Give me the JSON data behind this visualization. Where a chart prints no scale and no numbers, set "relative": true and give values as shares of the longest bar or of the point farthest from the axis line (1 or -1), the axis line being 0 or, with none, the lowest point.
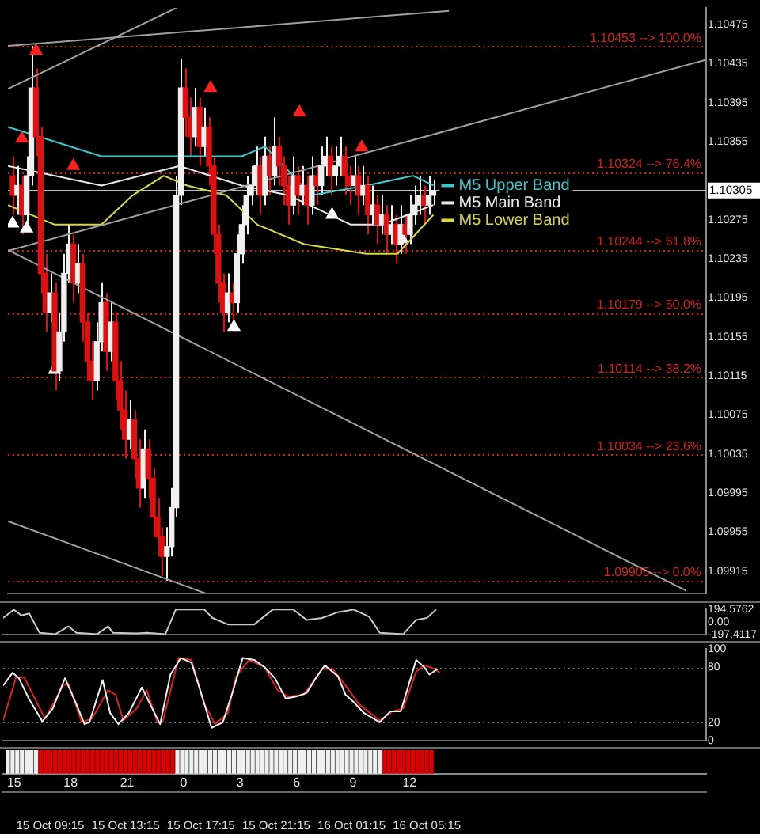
{
  "chart_data": [
    {
      "type": "candlestick",
      "xlim": [
        "--10-15T06:45",
        "--10-16T20:05"
      ],
      "ylim": [
        1.09892,
        1.10492
      ],
      "legend": "center",
      "yticks": [
        1.09915,
        1.09955,
        1.09995,
        1.10035,
        1.10075,
        1.10115,
        1.10155,
        1.10195,
        1.10235,
        1.10275,
        1.10355,
        1.10395,
        1.10435,
        1.10475
      ],
      "tick_labels": "y",
      "x": [
        "--10-15T07:00",
        "--10-15T07:15",
        "--10-15T07:30",
        "--10-15T07:45",
        "--10-15T08:00",
        "--10-15T08:15",
        "--10-15T08:30",
        "--10-15T08:45",
        "--10-15T09:00",
        "--10-15T09:15",
        "--10-15T09:30",
        "--10-15T09:45",
        "--10-15T10:00",
        "--10-15T10:15",
        "--10-15T10:30",
        "--10-15T10:45",
        "--10-15T11:00",
        "--10-15T11:15",
        "--10-15T11:30",
        "--10-15T11:45",
        "--10-15T12:00",
        "--10-15T12:15",
        "--10-15T12:30",
        "--10-15T12:45",
        "--10-15T13:00",
        "--10-15T13:15",
        "--10-15T13:30",
        "--10-15T13:45",
        "--10-15T14:00",
        "--10-15T14:15",
        "--10-15T14:30",
        "--10-15T14:45",
        "--10-15T15:00",
        "--10-15T15:15",
        "--10-15T15:30",
        "--10-15T15:45",
        "--10-15T16:00",
        "--10-15T16:15",
        "--10-15T16:30",
        "--10-15T16:45",
        "--10-15T17:00",
        "--10-15T17:15",
        "--10-15T17:30",
        "--10-15T17:45",
        "--10-15T18:00",
        "--10-15T18:15",
        "--10-15T18:30",
        "--10-15T18:45",
        "--10-15T19:00",
        "--10-15T19:15",
        "--10-15T19:30",
        "--10-15T19:45",
        "--10-15T20:00",
        "--10-15T20:15",
        "--10-15T20:30",
        "--10-15T20:45",
        "--10-15T21:00",
        "--10-15T21:15",
        "--10-15T21:30",
        "--10-15T21:45",
        "--10-15T22:00",
        "--10-15T22:15",
        "--10-15T22:30",
        "--10-15T22:45",
        "--10-15T23:00",
        "--10-15T23:15",
        "--10-15T23:30",
        "--10-15T23:45",
        "--10-16T00:00",
        "--10-16T00:15",
        "--10-16T00:30",
        "--10-16T00:45",
        "--10-16T01:00",
        "--10-16T01:15",
        "--10-16T01:30",
        "--10-16T01:45",
        "--10-16T02:00",
        "--10-16T02:15",
        "--10-16T02:30",
        "--10-16T02:45",
        "--10-16T03:00",
        "--10-16T03:15",
        "--10-16T03:30",
        "--10-16T03:45",
        "--10-16T04:00",
        "--10-16T04:15",
        "--10-16T04:30",
        "--10-16T04:45",
        "--10-16T05:00",
        "--10-16T05:15",
        "--10-16T05:30"
      ],
      "ohlc": [
        [
          1.1032,
          1.1034,
          1.1028,
          1.103
        ],
        [
          1.103,
          1.1033,
          1.1028,
          1.1031
        ],
        [
          1.1031,
          1.1032,
          1.1026,
          1.1028
        ],
        [
          1.1028,
          1.1034,
          1.1027,
          1.1032
        ],
        [
          1.1032,
          1.10453,
          1.1031,
          1.1041
        ],
        [
          1.1041,
          1.1043,
          1.1034,
          1.1036
        ],
        [
          1.1036,
          1.1037,
          1.102,
          1.1022
        ],
        [
          1.1022,
          1.1024,
          1.1016,
          1.1018
        ],
        [
          1.1018,
          1.1022,
          1.1017,
          1.102
        ],
        [
          1.102,
          1.1021,
          1.101,
          1.1012
        ],
        [
          1.1012,
          1.1018,
          1.1011,
          1.1016
        ],
        [
          1.1016,
          1.1024,
          1.1015,
          1.1022
        ],
        [
          1.1022,
          1.1027,
          1.1021,
          1.1025
        ],
        [
          1.1025,
          1.1026,
          1.1019,
          1.1021
        ],
        [
          1.1021,
          1.1025,
          1.102,
          1.1023
        ],
        [
          1.1023,
          1.1024,
          1.1015,
          1.1017
        ],
        [
          1.1017,
          1.1018,
          1.1011,
          1.1013
        ],
        [
          1.1013,
          1.1015,
          1.1009,
          1.1011
        ],
        [
          1.1011,
          1.1017,
          1.101,
          1.1015
        ],
        [
          1.1015,
          1.1021,
          1.1014,
          1.1019
        ],
        [
          1.1019,
          1.102,
          1.1012,
          1.1014
        ],
        [
          1.1014,
          1.1019,
          1.1013,
          1.1017
        ],
        [
          1.1017,
          1.1018,
          1.1009,
          1.1011
        ],
        [
          1.1011,
          1.1013,
          1.1006,
          1.1008
        ],
        [
          1.1008,
          1.101,
          1.1003,
          1.1005
        ],
        [
          1.1005,
          1.1009,
          1.1004,
          1.1007
        ],
        [
          1.1007,
          1.1008,
          1.1001,
          1.1003
        ],
        [
          1.1003,
          1.1005,
          1.0998,
          1.1
        ],
        [
          1.1,
          1.1006,
          1.0999,
          1.1004
        ],
        [
          1.1004,
          1.1005,
          1.0999,
          1.1001
        ],
        [
          1.1001,
          1.1002,
          1.0995,
          1.0997
        ],
        [
          1.0997,
          1.0999,
          1.0993,
          1.0995
        ],
        [
          1.0995,
          1.0996,
          1.0991,
          1.0993
        ],
        [
          1.0993,
          1.0996,
          1.09905,
          1.0994
        ],
        [
          1.0994,
          1.1,
          1.0993,
          1.0998
        ],
        [
          1.0998,
          1.1032,
          1.0997,
          1.103
        ],
        [
          1.103,
          1.1044,
          1.1029,
          1.1041
        ],
        [
          1.1041,
          1.1043,
          1.1036,
          1.1038
        ],
        [
          1.1038,
          1.104,
          1.1034,
          1.1036
        ],
        [
          1.1036,
          1.1041,
          1.1035,
          1.1039
        ],
        [
          1.1039,
          1.104,
          1.1033,
          1.1035
        ],
        [
          1.1035,
          1.1039,
          1.1034,
          1.1037
        ],
        [
          1.1037,
          1.1038,
          1.1031,
          1.1033
        ],
        [
          1.1033,
          1.1034,
          1.1024,
          1.1026
        ],
        [
          1.1026,
          1.1027,
          1.1019,
          1.1021
        ],
        [
          1.1021,
          1.1022,
          1.1016,
          1.1018
        ],
        [
          1.1018,
          1.1022,
          1.1017,
          1.102
        ],
        [
          1.102,
          1.1021,
          1.1017,
          1.1019
        ],
        [
          1.1019,
          1.1026,
          1.1018,
          1.1024
        ],
        [
          1.1024,
          1.1029,
          1.1023,
          1.1027
        ],
        [
          1.1027,
          1.1032,
          1.1026,
          1.103
        ],
        [
          1.103,
          1.1033,
          1.1029,
          1.1031
        ],
        [
          1.1031,
          1.1035,
          1.103,
          1.1033
        ],
        [
          1.1033,
          1.1034,
          1.1028,
          1.103
        ],
        [
          1.103,
          1.1036,
          1.1029,
          1.1034
        ],
        [
          1.1034,
          1.1035,
          1.103,
          1.1032
        ],
        [
          1.1032,
          1.1038,
          1.1031,
          1.1035
        ],
        [
          1.1035,
          1.1036,
          1.1031,
          1.1033
        ],
        [
          1.1033,
          1.1034,
          1.1029,
          1.1031
        ],
        [
          1.1031,
          1.1032,
          1.1027,
          1.1029
        ],
        [
          1.1029,
          1.1034,
          1.1028,
          1.1032
        ],
        [
          1.1032,
          1.1033,
          1.1028,
          1.103
        ],
        [
          1.103,
          1.1033,
          1.1029,
          1.1031
        ],
        [
          1.1031,
          1.1032,
          1.1027,
          1.1029
        ],
        [
          1.1029,
          1.1034,
          1.1028,
          1.1032
        ],
        [
          1.1032,
          1.1033,
          1.1029,
          1.1031
        ],
        [
          1.1031,
          1.1035,
          1.103,
          1.1033
        ],
        [
          1.1033,
          1.1036,
          1.1032,
          1.1034
        ],
        [
          1.1034,
          1.1035,
          1.103,
          1.1032
        ],
        [
          1.1032,
          1.1035,
          1.1031,
          1.1033
        ],
        [
          1.1033,
          1.1036,
          1.1032,
          1.1034
        ],
        [
          1.1034,
          1.1035,
          1.103,
          1.1032
        ],
        [
          1.1032,
          1.1033,
          1.1029,
          1.1031
        ],
        [
          1.1031,
          1.1034,
          1.103,
          1.1032
        ],
        [
          1.1032,
          1.1033,
          1.1028,
          1.103
        ],
        [
          1.103,
          1.1033,
          1.1029,
          1.1031
        ],
        [
          1.1031,
          1.1032,
          1.1026,
          1.1028
        ],
        [
          1.1028,
          1.1031,
          1.1027,
          1.1029
        ],
        [
          1.1029,
          1.103,
          1.1025,
          1.1027
        ],
        [
          1.1027,
          1.103,
          1.1026,
          1.1028
        ],
        [
          1.1028,
          1.1029,
          1.1024,
          1.1026
        ],
        [
          1.1026,
          1.1029,
          1.1025,
          1.1027
        ],
        [
          1.1027,
          1.1028,
          1.1023,
          1.1025
        ],
        [
          1.1025,
          1.1029,
          1.1024,
          1.1027
        ],
        [
          1.1027,
          1.1028,
          1.1024,
          1.1026
        ],
        [
          1.1026,
          1.103,
          1.1025,
          1.1028
        ],
        [
          1.1028,
          1.1031,
          1.1027,
          1.1029
        ],
        [
          1.1029,
          1.1032,
          1.1028,
          1.103
        ],
        [
          1.103,
          1.1031,
          1.1027,
          1.1029
        ],
        [
          1.1029,
          1.1032,
          1.1028,
          1.103
        ],
        [
          1.103,
          1.10315,
          1.1029,
          1.10305
        ]
      ],
      "series": [
        {
          "type": "line",
          "color": "#a0a0a0",
          "x": [
            "--10-15T06:45",
            "--10-15T15:45"
          ],
          "values": [
            1.10409,
            1.10492
          ]
        },
        {
          "type": "line",
          "color": "#a0a0a0",
          "x": [
            "--10-15T06:45",
            "--10-16T06:20"
          ],
          "values": [
            1.10453,
            1.10489
          ]
        },
        {
          "type": "line",
          "color": "#a0a0a0",
          "x": [
            "--10-15T06:45",
            "--10-16T20:05"
          ],
          "values": [
            1.10243,
            1.10439
          ]
        },
        {
          "type": "line",
          "color": "#a0a0a0",
          "x": [
            "--10-15T06:45",
            "--10-16T19:00"
          ],
          "values": [
            1.10244,
            1.09895
          ]
        },
        {
          "type": "line",
          "color": "#a0a0a0",
          "x": [
            "--10-15T06:45",
            "--10-15T17:20"
          ],
          "values": [
            1.09966,
            1.09892
          ]
        },
        {
          "type": "line",
          "name": "M5 Upper Band",
          "color": "#40c8c8",
          "x": [
            "--10-15T06:45",
            "--10-15T08:25",
            "--10-15T11:45",
            "--10-15T15:05",
            "--10-15T19:15",
            "--10-15T20:30",
            "--10-15T23:00",
            "--10-16T01:55",
            "--10-16T04:25",
            "--10-16T05:30"
          ],
          "values": [
            1.1037,
            1.1036,
            1.1034,
            1.1034,
            1.1034,
            1.1035,
            1.103,
            1.1031,
            1.1032,
            1.1031
          ]
        },
        {
          "type": "line",
          "name": "M5 Main Band",
          "color": "#e8e8e8",
          "x": [
            "--10-15T06:45",
            "--10-15T11:45",
            "--10-15T15:55",
            "--10-15T19:15",
            "--10-15T21:45",
            "--10-16T01:05",
            "--10-16T02:45",
            "--10-16T05:30"
          ],
          "values": [
            1.1033,
            1.1031,
            1.1033,
            1.1031,
            1.103,
            1.1027,
            1.1027,
            1.1029
          ]
        },
        {
          "type": "line",
          "name": "M5 Lower Band",
          "color": "#d8d840",
          "x": [
            "--10-15T06:45",
            "--10-15T09:15",
            "--10-15T11:45",
            "--10-15T13:25",
            "--10-15T15:05",
            "--10-15T16:20",
            "--10-15T18:25",
            "--10-15T20:05",
            "--10-15T22:35",
            "--10-16T01:55",
            "--10-16T03:35",
            "--10-16T05:30"
          ],
          "values": [
            1.1029,
            1.1027,
            1.1027,
            1.103,
            1.1032,
            1.1031,
            1.103,
            1.1027,
            1.1025,
            1.1024,
            1.1024,
            1.1028
          ]
        },
        {
          "type": "scatter",
          "marker": "triangle",
          "color": "#ffffff",
          "x": [
            "--10-15T07:00",
            "--10-15T07:45",
            "--10-15T09:15",
            "--10-15T18:50",
            "--10-16T00:05",
            "--10-16T03:50"
          ],
          "values": [
            1.10271,
            1.10266,
            1.10121,
            1.10165,
            1.1028,
            1.10255
          ]
        },
        {
          "type": "scatter",
          "marker": "triangle",
          "color": "#ff2020",
          "x": [
            "--10-15T07:30",
            "--10-15T08:15",
            "--10-15T10:15",
            "--10-15T17:35",
            "--10-15T22:20",
            "--10-16T01:40"
          ],
          "values": [
            1.10358,
            1.10448,
            1.1033,
            1.1041,
            1.10385,
            1.10349
          ]
        }
      ],
      "ref_lines": [
        {
          "axis": "y",
          "value": 1.10453,
          "label": "1.10453 --> 100.0%",
          "color": "#d02020",
          "line_style": "dotted"
        },
        {
          "axis": "y",
          "value": 1.10324,
          "label": "1.10324 --> 76.4%",
          "color": "#d02020",
          "line_style": "dotted"
        },
        {
          "axis": "y",
          "value": 1.10244,
          "label": "1.10244 --> 61.8%",
          "color": "#d02020",
          "line_style": "dotted"
        },
        {
          "axis": "y",
          "value": 1.10179,
          "label": "1.10179 --> 50.0%",
          "color": "#d02020",
          "line_style": "dotted"
        },
        {
          "axis": "y",
          "value": 1.10114,
          "label": "1.10114 --> 38.2%",
          "color": "#d02020",
          "line_style": "dotted"
        },
        {
          "axis": "y",
          "value": 1.10034,
          "label": "1.10034 --> 23.6%",
          "color": "#d02020",
          "line_style": "dotted"
        },
        {
          "axis": "y",
          "value": 1.09905,
          "label": "1.09905 --> 0.0%",
          "color": "#d02020",
          "line_style": "dotted"
        },
        {
          "axis": "y",
          "value": 1.10305,
          "label": "1.10305",
          "color": "#c0c0c0",
          "line_style": "solid"
        }
      ]
    },
    {
      "type": "line",
      "xlim": [
        "--10-15T06:45",
        "--10-16T20:05"
      ],
      "ylim": [
        -197.4117,
        194.5762
      ],
      "yticks": [
        -197.4117,
        {
          "value": 0,
          "label": "0.00"
        },
        194.5762
      ],
      "tick_labels": "y",
      "series": [
        {
          "color": "#c8c8c8",
          "x": [
            "--10-15T06:45",
            "--10-15T07:19",
            "--10-15T07:43",
            "--10-15T08:08",
            "--10-15T08:41",
            "--10-15T09:32",
            "--10-15T10:13",
            "--10-15T10:38",
            "--10-15T11:45",
            "--10-15T12:19",
            "--10-15T12:35",
            "--10-15T13:50",
            "--10-15T14:23",
            "--10-15T15:22",
            "--10-15T15:55",
            "--10-15T17:26",
            "--10-15T17:52",
            "--10-15T18:41",
            "--10-15T20:05",
            "--10-15T21:04",
            "--10-15T22:10",
            "--10-15T22:52",
            "--10-15T23:41",
            "--10-16T00:32",
            "--10-16T01:22",
            "--10-16T02:11",
            "--10-16T02:45",
            "--10-16T04:00",
            "--10-16T04:41",
            "--10-16T05:15",
            "--10-16T05:45"
          ],
          "values": [
            60,
            190,
            100,
            130,
            -170,
            -190,
            -70,
            -170,
            -190,
            -70,
            -170,
            -180,
            -170,
            -190,
            190,
            190,
            60,
            -40,
            -40,
            190,
            190,
            30,
            60,
            150,
            190,
            80,
            -170,
            -190,
            30,
            60,
            190
          ]
        }
      ]
    },
    {
      "type": "line",
      "xlim": [
        "--10-15T06:45",
        "--10-16T20:05"
      ],
      "ylim": [
        0,
        100
      ],
      "yticks": [
        0,
        20,
        80,
        100
      ],
      "tick_labels": "y",
      "ref_lines": [
        {
          "axis": "y",
          "value": 20,
          "color": "#707070",
          "line_style": "dotted"
        },
        {
          "axis": "y",
          "value": 80,
          "color": "#707070",
          "line_style": "dotted"
        }
      ],
      "series": [
        {
          "color": "#f0f0f0",
          "x": [
            "--10-15T06:45",
            "--10-15T07:15",
            "--10-15T07:35",
            "--10-15T08:08",
            "--10-15T08:50",
            "--10-15T09:23",
            "--10-15T10:02",
            "--10-15T10:38",
            "--10-15T11:04",
            "--10-15T11:20",
            "--10-15T12:02",
            "--10-15T12:26",
            "--10-15T12:52",
            "--10-15T13:25",
            "--10-15T14:07",
            "--10-15T14:40",
            "--10-15T15:05",
            "--10-15T15:38",
            "--10-15T16:11",
            "--10-15T16:45",
            "--10-15T17:10",
            "--10-15T17:49",
            "--10-15T18:25",
            "--10-15T18:58",
            "--10-15T19:28",
            "--10-15T20:05",
            "--10-15T20:38",
            "--10-15T21:11",
            "--10-15T21:45",
            "--10-15T22:19",
            "--10-15T22:52",
            "--10-15T23:25",
            "--10-15T23:50",
            "--10-16T00:32",
            "--10-16T00:56",
            "--10-16T01:22",
            "--10-16T01:55",
            "--10-16T02:45",
            "--10-16T03:19",
            "--10-16T03:52",
            "--10-16T04:41",
            "--10-16T05:07",
            "--10-16T05:23",
            "--10-16T05:49"
          ],
          "values": [
            60,
            74,
            68,
            45,
            21,
            35,
            68,
            40,
            18,
            20,
            66,
            30,
            18,
            30,
            58,
            35,
            18,
            72,
            90,
            85,
            58,
            14,
            20,
            55,
            90,
            88,
            80,
            68,
            46,
            48,
            52,
            70,
            82,
            70,
            50,
            42,
            30,
            20,
            32,
            32,
            88,
            80,
            72,
            78
          ]
        },
        {
          "color": "#e02020",
          "x": [
            "--10-15T06:45",
            "--10-15T07:26",
            "--10-15T07:52",
            "--10-15T08:58",
            "--10-15T09:56",
            "--10-15T10:13",
            "--10-15T10:55",
            "--10-15T11:28",
            "--10-15T12:19",
            "--10-15T12:43",
            "--10-15T13:08",
            "--10-15T13:50",
            "--10-15T14:23",
            "--10-15T14:56",
            "--10-15T15:13",
            "--10-15T16:04",
            "--10-15T16:45",
            "--10-15T17:26",
            "--10-15T18:00",
            "--10-15T18:41",
            "--10-15T19:07",
            "--10-15T19:49",
            "--10-15T20:38",
            "--10-15T21:20",
            "--10-15T21:53",
            "--10-15T22:43",
            "--10-15T23:41",
            "--10-16T00:15",
            "--10-16T00:56",
            "--10-16T01:38",
            "--10-16T02:45",
            "--10-16T03:26",
            "--10-16T04:00",
            "--10-16T04:41",
            "--10-16T05:07",
            "--10-16T05:40",
            "--10-16T05:56"
          ],
          "values": [
            22,
            69,
            69,
            24,
            60,
            62,
            20,
            24,
            55,
            50,
            22,
            35,
            55,
            20,
            20,
            90,
            88,
            40,
            18,
            30,
            70,
            88,
            80,
            55,
            48,
            50,
            78,
            78,
            60,
            40,
            22,
            32,
            35,
            75,
            82,
            78,
            74
          ]
        }
      ]
    },
    {
      "type": "bar",
      "relative": true,
      "xlim": [
        "--10-15T06:45",
        "--10-16T20:05"
      ],
      "tick_labels": "x",
      "xticks": [
        {
          "value": "--10-15T09:15",
          "label": "15 Oct 09:15"
        },
        {
          "value": "--10-15T13:15",
          "label": "15 Oct 13:15"
        },
        {
          "value": "--10-15T17:15",
          "label": "15 Oct 17:15"
        },
        {
          "value": "--10-15T21:15",
          "label": "15 Oct 21:15"
        },
        {
          "value": "--10-16T01:15",
          "label": "16 Oct 01:15"
        },
        {
          "value": "--10-16T05:15",
          "label": "16 Oct 05:15"
        }
      ],
      "x2lim": [
        "--10-15T14:25",
        "--10-17T03:45"
      ],
      "x2ticks": [
        {
          "value": "--10-15T15:00",
          "label": "15"
        },
        {
          "value": "--10-15T18:00",
          "label": "18"
        },
        {
          "value": "--10-15T21:00",
          "label": "21"
        },
        {
          "value": "--10-16T00:00",
          "label": "0"
        },
        {
          "value": "--10-16T03:00",
          "label": "3"
        },
        {
          "value": "--10-16T06:00",
          "label": "6"
        },
        {
          "value": "--10-16T09:00",
          "label": "9"
        },
        {
          "value": "--10-16T12:00",
          "label": "12"
        }
      ],
      "x": [
        "--10-15T07:00",
        "--10-15T07:15",
        "--10-15T07:30",
        "--10-15T07:45",
        "--10-15T08:00",
        "--10-15T08:15",
        "--10-15T08:30",
        "--10-15T08:45",
        "--10-15T09:00",
        "--10-15T09:15",
        "--10-15T09:30",
        "--10-15T09:45",
        "--10-15T10:00",
        "--10-15T10:15",
        "--10-15T10:30",
        "--10-15T10:45",
        "--10-15T11:00",
        "--10-15T11:15",
        "--10-15T11:30",
        "--10-15T11:45",
        "--10-15T12:00",
        "--10-15T12:15",
        "--10-15T12:30",
        "--10-15T12:45",
        "--10-15T13:00",
        "--10-15T13:15",
        "--10-15T13:30",
        "--10-15T13:45",
        "--10-15T14:00",
        "--10-15T14:15",
        "--10-15T14:30",
        "--10-15T14:45",
        "--10-15T15:00",
        "--10-15T15:15",
        "--10-15T15:30",
        "--10-15T15:45",
        "--10-15T16:00",
        "--10-15T16:15",
        "--10-15T16:30",
        "--10-15T16:45",
        "--10-15T17:00",
        "--10-15T17:15",
        "--10-15T17:30",
        "--10-15T17:45",
        "--10-15T18:00",
        "--10-15T18:15",
        "--10-15T18:30",
        "--10-15T18:45",
        "--10-15T19:00",
        "--10-15T19:15",
        "--10-15T19:30",
        "--10-15T19:45",
        "--10-15T20:00",
        "--10-15T20:15",
        "--10-15T20:30",
        "--10-15T20:45",
        "--10-15T21:00",
        "--10-15T21:15",
        "--10-15T21:30",
        "--10-15T21:45",
        "--10-15T22:00",
        "--10-15T22:15",
        "--10-15T22:30",
        "--10-15T22:45",
        "--10-15T23:00",
        "--10-15T23:15",
        "--10-15T23:30",
        "--10-15T23:45",
        "--10-16T00:00",
        "--10-16T00:15",
        "--10-16T00:30",
        "--10-16T00:45",
        "--10-16T01:00",
        "--10-16T01:15",
        "--10-16T01:30",
        "--10-16T01:45",
        "--10-16T02:00",
        "--10-16T02:15",
        "--10-16T02:30",
        "--10-16T02:45",
        "--10-16T03:00",
        "--10-16T03:15",
        "--10-16T03:30",
        "--10-16T03:45",
        "--10-16T04:00",
        "--10-16T04:15",
        "--10-16T04:30",
        "--10-16T04:45",
        "--10-16T05:00",
        "--10-16T05:15",
        "--10-16T05:30"
      ],
      "values": [
        1,
        1,
        1,
        1,
        1,
        1,
        1,
        1,
        1,
        1,
        1,
        1,
        1,
        1,
        1,
        1,
        1,
        1,
        1,
        1,
        1,
        1,
        1,
        1,
        1,
        1,
        1,
        1,
        1,
        1,
        1,
        1,
        1,
        1,
        1,
        1,
        1,
        1,
        1,
        1,
        1,
        1,
        1,
        1,
        1,
        1,
        1,
        1,
        1,
        1,
        1,
        1,
        1,
        1,
        1,
        1,
        1,
        1,
        1,
        1,
        1,
        1,
        1,
        1,
        1,
        1,
        1,
        1,
        1,
        1,
        1,
        1,
        1,
        1,
        1,
        1,
        1,
        1,
        1,
        1,
        1,
        1,
        1,
        1,
        1,
        1,
        1,
        1,
        1,
        1,
        1
      ],
      "colors": [
        "#f0f0f0",
        "#f0f0f0",
        "#f0f0f0",
        "#f0f0f0",
        "#f0f0f0",
        "#f0f0f0",
        "#f0f0f0",
        "#e00000",
        "#e00000",
        "#e00000",
        "#e00000",
        "#e00000",
        "#e00000",
        "#e00000",
        "#e00000",
        "#e00000",
        "#e00000",
        "#e00000",
        "#e00000",
        "#e00000",
        "#e00000",
        "#e00000",
        "#e00000",
        "#e00000",
        "#e00000",
        "#e00000",
        "#e00000",
        "#e00000",
        "#e00000",
        "#e00000",
        "#e00000",
        "#e00000",
        "#e00000",
        "#e00000",
        "#e00000",
        "#e00000",
        "#f0f0f0",
        "#f0f0f0",
        "#f0f0f0",
        "#f0f0f0",
        "#f0f0f0",
        "#f0f0f0",
        "#f0f0f0",
        "#f0f0f0",
        "#f0f0f0",
        "#f0f0f0",
        "#f0f0f0",
        "#f0f0f0",
        "#f0f0f0",
        "#f0f0f0",
        "#f0f0f0",
        "#f0f0f0",
        "#f0f0f0",
        "#f0f0f0",
        "#f0f0f0",
        "#f0f0f0",
        "#f0f0f0",
        "#f0f0f0",
        "#f0f0f0",
        "#f0f0f0",
        "#f0f0f0",
        "#f0f0f0",
        "#f0f0f0",
        "#f0f0f0",
        "#f0f0f0",
        "#f0f0f0",
        "#f0f0f0",
        "#f0f0f0",
        "#f0f0f0",
        "#f0f0f0",
        "#f0f0f0",
        "#f0f0f0",
        "#f0f0f0",
        "#f0f0f0",
        "#f0f0f0",
        "#f0f0f0",
        "#f0f0f0",
        "#f0f0f0",
        "#f0f0f0",
        "#f0f0f0",
        "#e00000",
        "#e00000",
        "#e00000",
        "#e00000",
        "#e00000",
        "#e00000",
        "#e00000",
        "#e00000",
        "#e00000",
        "#e00000",
        "#e00000"
      ]
    }
  ]
}
